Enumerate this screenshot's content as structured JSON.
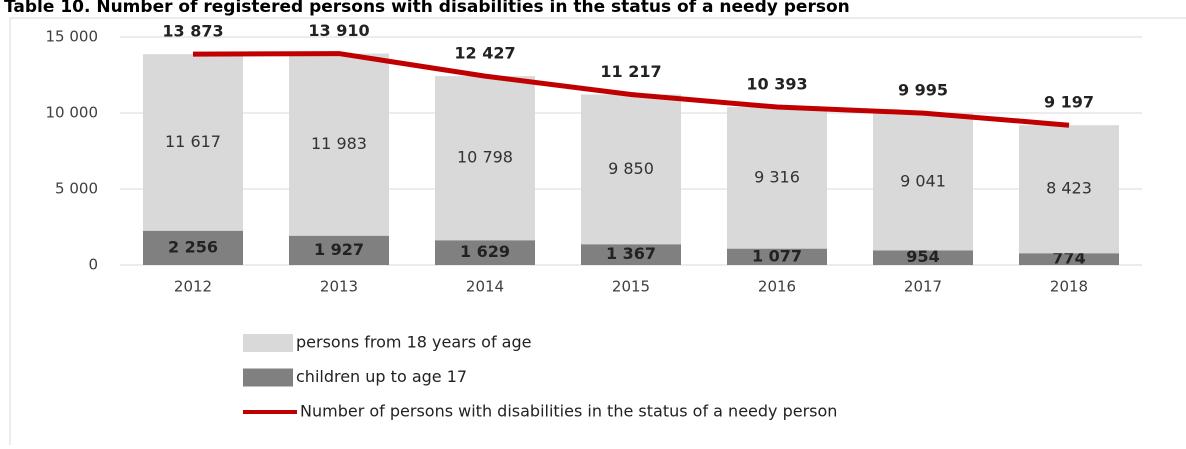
{
  "chart_data": {
    "type": "bar",
    "title": "Table 10. Number of registered persons with disabilities in the status of a needy person",
    "categories": [
      "2012",
      "2013",
      "2014",
      "2015",
      "2016",
      "2017",
      "2018"
    ],
    "stacked": true,
    "series": [
      {
        "name": "children up to age 17",
        "type": "bar",
        "color": "#808080",
        "values": [
          2256,
          1927,
          1629,
          1367,
          1077,
          954,
          774
        ],
        "value_labels": [
          "2 256",
          "1 927",
          "1 629",
          "1 367",
          "1 077",
          "954",
          "774"
        ]
      },
      {
        "name": "persons from 18 years of age",
        "type": "bar",
        "color": "#d9d9d9",
        "values": [
          11617,
          11983,
          10798,
          9850,
          9316,
          9041,
          8423
        ],
        "value_labels": [
          "11 617",
          "11 983",
          "10 798",
          "9 850",
          "9 316",
          "9 041",
          "8 423"
        ]
      },
      {
        "name": "Number of persons with disabilities in the status of a needy person",
        "type": "line",
        "color": "#c00000",
        "values": [
          13873,
          13910,
          12427,
          11217,
          10393,
          9995,
          9197
        ],
        "value_labels": [
          "13 873",
          "13 910",
          "12 427",
          "11 217",
          "10 393",
          "9 995",
          "9 197"
        ]
      }
    ],
    "ylim": [
      0,
      15000
    ],
    "yticks": [
      {
        "value": 0,
        "label": "0"
      },
      {
        "value": 5000,
        "label": "5 000"
      },
      {
        "value": 10000,
        "label": "10 000"
      },
      {
        "value": 15000,
        "label": "15 000"
      }
    ],
    "grid": true
  }
}
